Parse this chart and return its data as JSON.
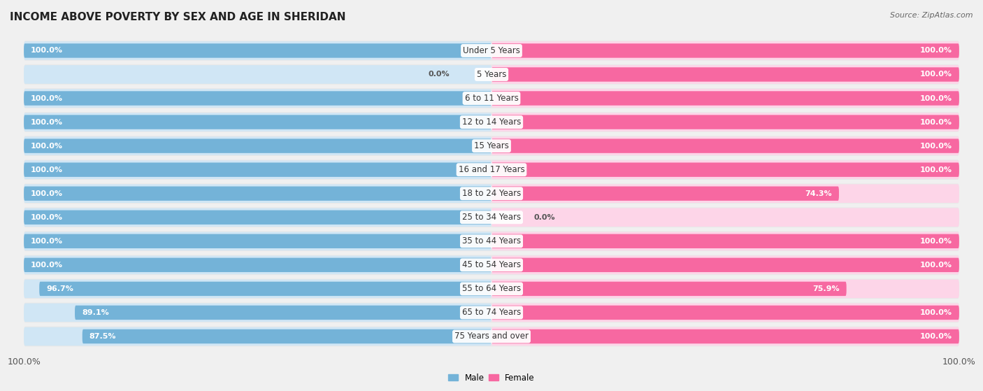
{
  "title": "INCOME ABOVE POVERTY BY SEX AND AGE IN SHERIDAN",
  "source": "Source: ZipAtlas.com",
  "categories": [
    "Under 5 Years",
    "5 Years",
    "6 to 11 Years",
    "12 to 14 Years",
    "15 Years",
    "16 and 17 Years",
    "18 to 24 Years",
    "25 to 34 Years",
    "35 to 44 Years",
    "45 to 54 Years",
    "55 to 64 Years",
    "65 to 74 Years",
    "75 Years and over"
  ],
  "male_values": [
    100.0,
    0.0,
    100.0,
    100.0,
    100.0,
    100.0,
    100.0,
    100.0,
    100.0,
    100.0,
    96.7,
    89.1,
    87.5
  ],
  "female_values": [
    100.0,
    100.0,
    100.0,
    100.0,
    100.0,
    100.0,
    74.3,
    0.0,
    100.0,
    100.0,
    75.9,
    100.0,
    100.0
  ],
  "male_color": "#74b3d8",
  "female_color": "#f768a1",
  "male_color_light": "#d0e6f5",
  "female_color_light": "#fdd5e8",
  "row_bg_color": "#e8e8e8",
  "background_color": "#f0f0f0",
  "title_fontsize": 11,
  "label_fontsize": 8.5,
  "tick_fontsize": 9,
  "value_fontsize": 8
}
